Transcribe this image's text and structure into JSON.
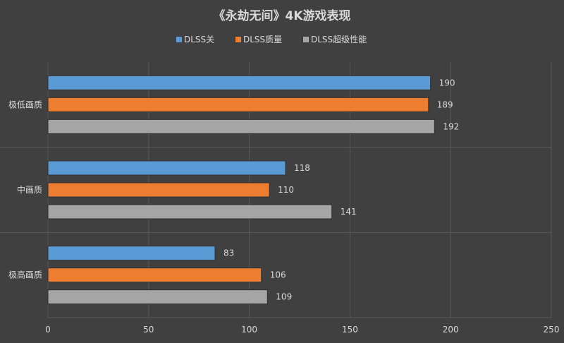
{
  "chart_data": {
    "type": "bar",
    "orientation": "horizontal",
    "title": "《永劫无间》4K游戏表现",
    "categories": [
      "极低画质",
      "中画质",
      "极高画质"
    ],
    "series": [
      {
        "name": "DLSS关",
        "values": [
          190,
          118,
          83
        ],
        "color": "#5b9bd5"
      },
      {
        "name": "DLSS质量",
        "values": [
          189,
          110,
          106
        ],
        "color": "#ed7d31"
      },
      {
        "name": "DLSS超级性能",
        "values": [
          192,
          141,
          109
        ],
        "color": "#a5a5a5"
      }
    ],
    "xlim": [
      0,
      250
    ],
    "xticks": [
      0,
      50,
      100,
      150,
      200,
      250
    ],
    "xlabel": "",
    "ylabel": "",
    "grid": true,
    "legend_position": "top",
    "colors": {
      "background": "#404040",
      "grid": "#595959",
      "text": "#d9d9d9"
    }
  }
}
